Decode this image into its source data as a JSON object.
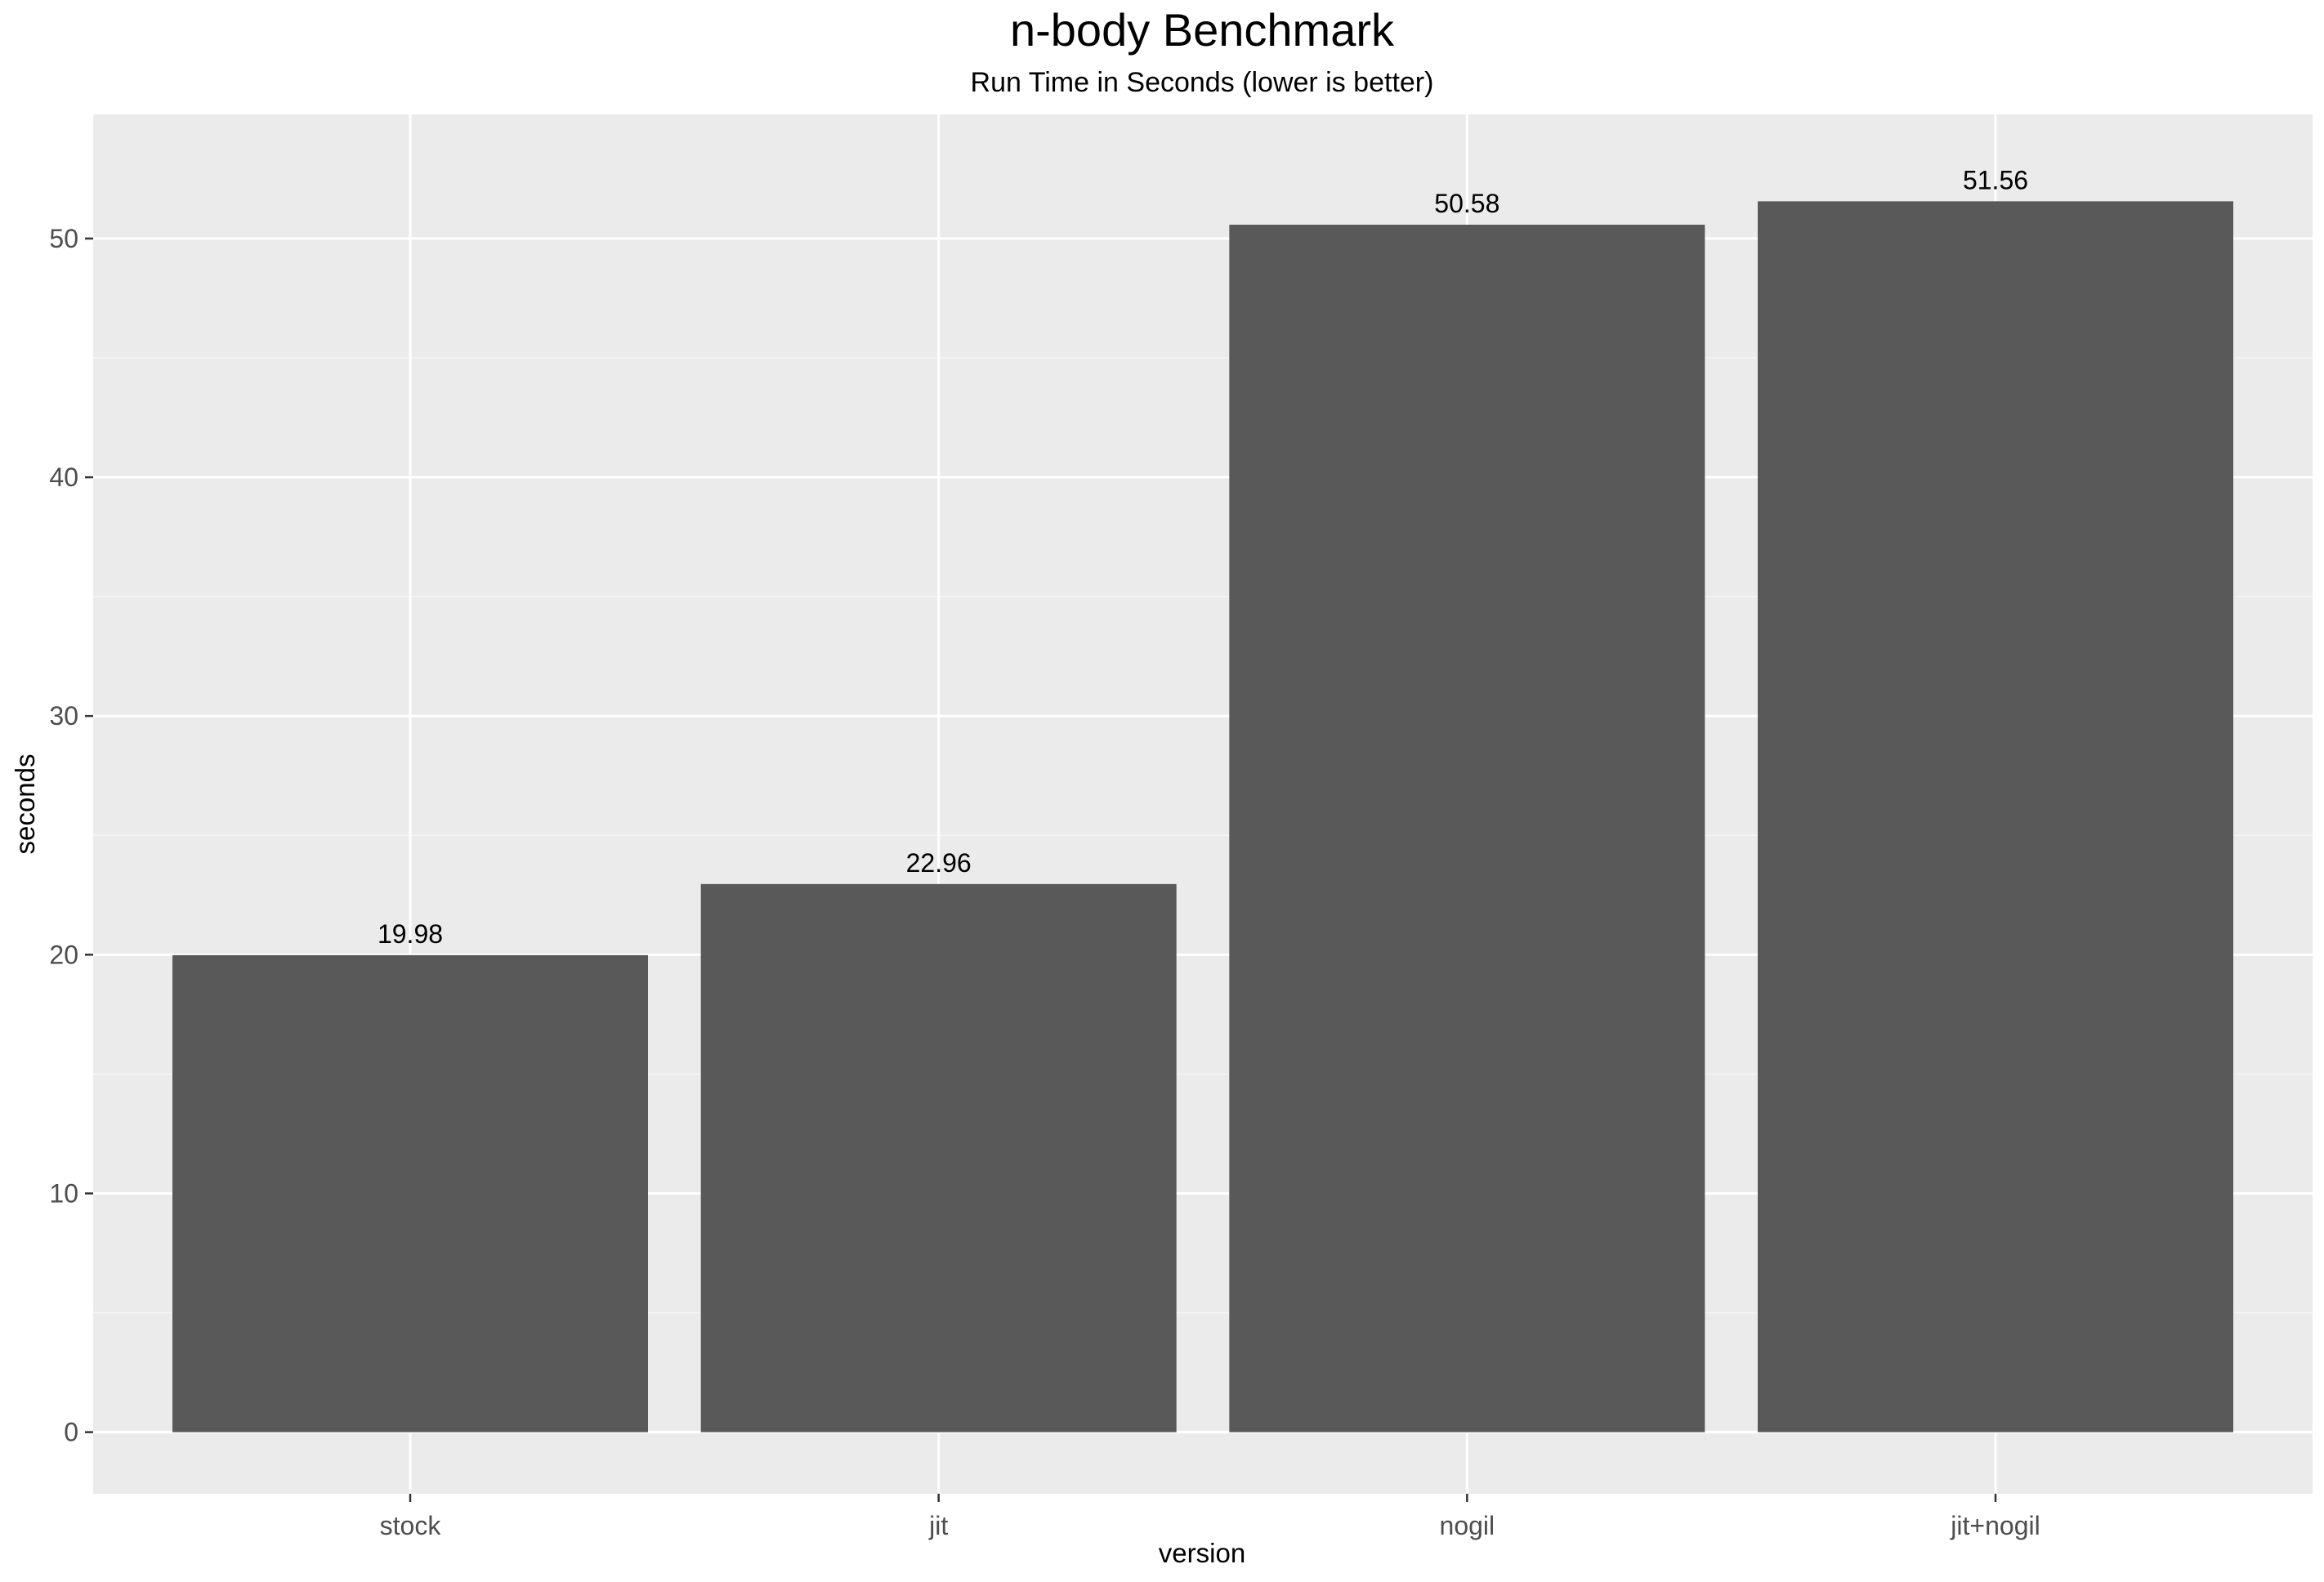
{
  "chart_data": {
    "type": "bar",
    "title": "n-body Benchmark",
    "subtitle": "Run Time in Seconds (lower is better)",
    "xlabel": "version",
    "ylabel": "seconds",
    "categories": [
      "stock",
      "jit",
      "nogil",
      "jit+nogil"
    ],
    "values": [
      19.98,
      22.96,
      50.58,
      51.56
    ],
    "data_labels": [
      "19.98",
      "22.96",
      "50.58",
      "51.56"
    ],
    "ylim": [
      -2.58,
      55.2
    ],
    "yticks": [
      0,
      10,
      20,
      30,
      40,
      50
    ],
    "ytick_labels": [
      "0",
      "10",
      "20",
      "30",
      "40",
      "50"
    ],
    "grid": true,
    "legend": "none",
    "colors": {
      "bar": "#595959",
      "panel_background": "#ebebeb",
      "grid_major": "#ffffff",
      "grid_minor": "#f5f5f5",
      "tick_label": "#4d4d4d",
      "text": "#000000"
    }
  }
}
